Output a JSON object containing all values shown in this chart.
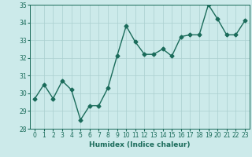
{
  "xlabel": "Humidex (Indice chaleur)",
  "x_values": [
    0,
    1,
    2,
    3,
    4,
    5,
    6,
    7,
    8,
    9,
    10,
    11,
    12,
    13,
    14,
    15,
    16,
    17,
    18,
    19,
    20,
    21,
    22,
    23
  ],
  "y_values": [
    29.7,
    30.5,
    29.7,
    30.7,
    30.2,
    28.5,
    29.3,
    29.3,
    30.3,
    32.1,
    33.8,
    32.9,
    32.2,
    32.2,
    32.5,
    32.1,
    33.2,
    33.3,
    33.3,
    35.0,
    34.2,
    33.3,
    33.3,
    34.1
  ],
  "line_color": "#1a6b5a",
  "marker": "D",
  "marker_size": 2.5,
  "bg_color": "#cceaea",
  "grid_color": "#aacfcf",
  "ylim": [
    28,
    35
  ],
  "xlim": [
    -0.5,
    23.5
  ],
  "yticks": [
    28,
    29,
    30,
    31,
    32,
    33,
    34,
    35
  ],
  "xticks": [
    0,
    1,
    2,
    3,
    4,
    5,
    6,
    7,
    8,
    9,
    10,
    11,
    12,
    13,
    14,
    15,
    16,
    17,
    18,
    19,
    20,
    21,
    22,
    23
  ],
  "tick_fontsize": 5.5,
  "label_fontsize": 6.5,
  "linewidth": 1.0
}
